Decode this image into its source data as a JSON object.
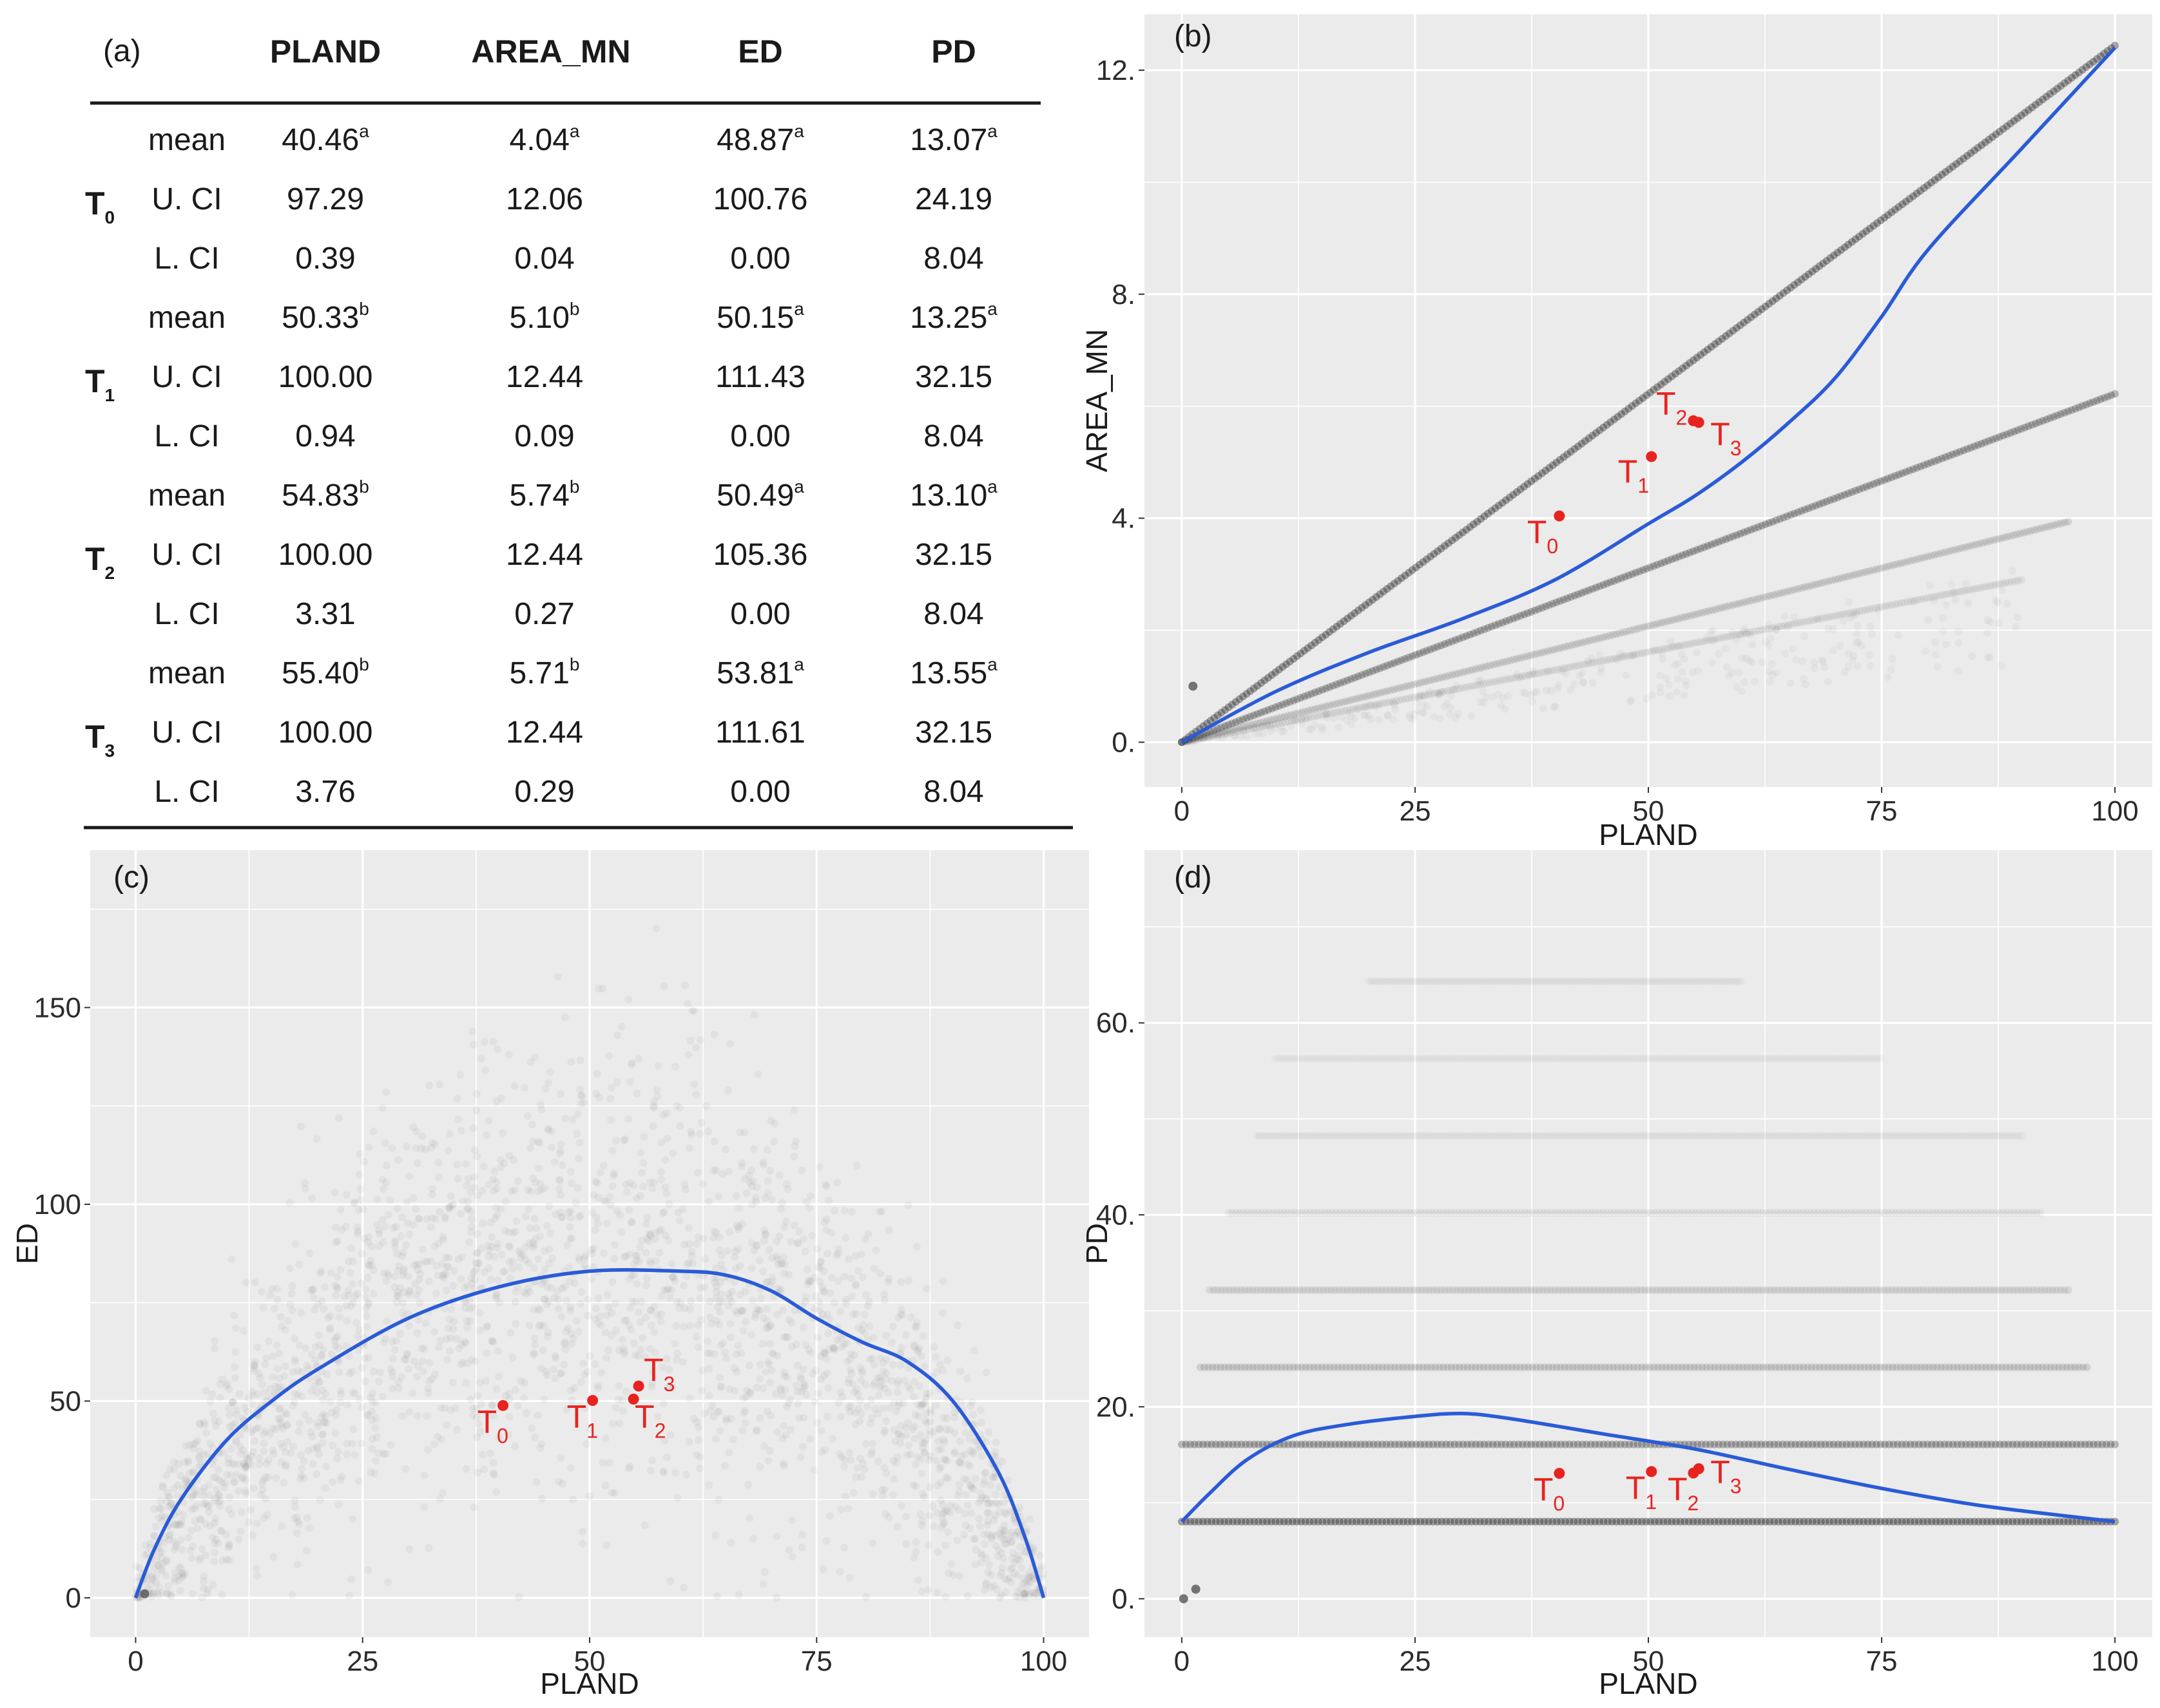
{
  "table": {
    "panel_label": "(a)",
    "columns": [
      "PLAND",
      "AREA_MN",
      "ED",
      "PD"
    ],
    "groups": [
      {
        "name": "T",
        "subscript": "0",
        "rows": [
          {
            "stat": "mean",
            "values": [
              {
                "v": "40.46",
                "sup": "a"
              },
              {
                "v": "4.04",
                "sup": "a"
              },
              {
                "v": "48.87",
                "sup": "a"
              },
              {
                "v": "13.07",
                "sup": "a"
              }
            ]
          },
          {
            "stat": "U. CI",
            "values": [
              {
                "v": "97.29",
                "sup": ""
              },
              {
                "v": "12.06",
                "sup": ""
              },
              {
                "v": "100.76",
                "sup": ""
              },
              {
                "v": "24.19",
                "sup": ""
              }
            ]
          },
          {
            "stat": "L. CI",
            "values": [
              {
                "v": "0.39",
                "sup": ""
              },
              {
                "v": "0.04",
                "sup": ""
              },
              {
                "v": "0.00",
                "sup": ""
              },
              {
                "v": "8.04",
                "sup": ""
              }
            ]
          }
        ]
      },
      {
        "name": "T",
        "subscript": "1",
        "rows": [
          {
            "stat": "mean",
            "values": [
              {
                "v": "50.33",
                "sup": "b"
              },
              {
                "v": "5.10",
                "sup": "b"
              },
              {
                "v": "50.15",
                "sup": "a"
              },
              {
                "v": "13.25",
                "sup": "a"
              }
            ]
          },
          {
            "stat": "U. CI",
            "values": [
              {
                "v": "100.00",
                "sup": ""
              },
              {
                "v": "12.44",
                "sup": ""
              },
              {
                "v": "111.43",
                "sup": ""
              },
              {
                "v": "32.15",
                "sup": ""
              }
            ]
          },
          {
            "stat": "L. CI",
            "values": [
              {
                "v": "0.94",
                "sup": ""
              },
              {
                "v": "0.09",
                "sup": ""
              },
              {
                "v": "0.00",
                "sup": ""
              },
              {
                "v": "8.04",
                "sup": ""
              }
            ]
          }
        ]
      },
      {
        "name": "T",
        "subscript": "2",
        "rows": [
          {
            "stat": "mean",
            "values": [
              {
                "v": "54.83",
                "sup": "b"
              },
              {
                "v": "5.74",
                "sup": "b"
              },
              {
                "v": "50.49",
                "sup": "a"
              },
              {
                "v": "13.10",
                "sup": "a"
              }
            ]
          },
          {
            "stat": "U. CI",
            "values": [
              {
                "v": "100.00",
                "sup": ""
              },
              {
                "v": "12.44",
                "sup": ""
              },
              {
                "v": "105.36",
                "sup": ""
              },
              {
                "v": "32.15",
                "sup": ""
              }
            ]
          },
          {
            "stat": "L. CI",
            "values": [
              {
                "v": "3.31",
                "sup": ""
              },
              {
                "v": "0.27",
                "sup": ""
              },
              {
                "v": "0.00",
                "sup": ""
              },
              {
                "v": "8.04",
                "sup": ""
              }
            ]
          }
        ]
      },
      {
        "name": "T",
        "subscript": "3",
        "rows": [
          {
            "stat": "mean",
            "values": [
              {
                "v": "55.40",
                "sup": "b"
              },
              {
                "v": "5.71",
                "sup": "b"
              },
              {
                "v": "53.81",
                "sup": "a"
              },
              {
                "v": "13.55",
                "sup": "a"
              }
            ]
          },
          {
            "stat": "U. CI",
            "values": [
              {
                "v": "100.00",
                "sup": ""
              },
              {
                "v": "12.44",
                "sup": ""
              },
              {
                "v": "111.61",
                "sup": ""
              },
              {
                "v": "32.15",
                "sup": ""
              }
            ]
          },
          {
            "stat": "L. CI",
            "values": [
              {
                "v": "3.76",
                "sup": ""
              },
              {
                "v": "0.29",
                "sup": ""
              },
              {
                "v": "0.00",
                "sup": ""
              },
              {
                "v": "8.04",
                "sup": ""
              }
            ]
          }
        ]
      }
    ]
  },
  "colors": {
    "panel_bg": "#ebebeb",
    "grid": "#ffffff",
    "smooth_line": "#2a5bd7",
    "treatment_point": "#e8231f",
    "scatter_point": "#333333"
  },
  "chart_data": [
    {
      "id": "b",
      "panel_label": "(b)",
      "type": "scatter",
      "xlabel": "PLAND",
      "ylabel": "AREA_MN",
      "xlim": [
        -4,
        104
      ],
      "ylim": [
        -0.8,
        13.0
      ],
      "xticks": [
        0,
        25,
        50,
        75,
        100
      ],
      "yticks": [
        0,
        4,
        8,
        12
      ],
      "scatter_bands": [
        {
          "description": "dense band",
          "x": [
            0,
            100
          ],
          "y": [
            0,
            12.44
          ],
          "opacity": 0.75
        },
        {
          "description": "band",
          "x": [
            0,
            100
          ],
          "y": [
            0,
            6.22
          ],
          "opacity": 0.55
        },
        {
          "description": "faint band",
          "x": [
            0,
            95
          ],
          "y": [
            0,
            3.94
          ],
          "opacity": 0.22
        },
        {
          "description": "faint band",
          "x": [
            0,
            90
          ],
          "y": [
            0,
            2.9
          ],
          "opacity": 0.12
        }
      ],
      "extra_points": [
        {
          "x": 1.2,
          "y": 1.0
        }
      ],
      "smooth": {
        "x": [
          0,
          10,
          20,
          30,
          40,
          50,
          55,
          60,
          65,
          70,
          75,
          80,
          90,
          100
        ],
        "y": [
          0,
          0.9,
          1.6,
          2.2,
          2.9,
          3.9,
          4.4,
          5.0,
          5.7,
          6.5,
          7.6,
          8.8,
          10.6,
          12.4
        ]
      },
      "treatments": [
        {
          "name": "T",
          "sub": "0",
          "x": 40.46,
          "y": 4.04
        },
        {
          "name": "T",
          "sub": "1",
          "x": 50.33,
          "y": 5.1
        },
        {
          "name": "T",
          "sub": "2",
          "x": 54.83,
          "y": 5.74
        },
        {
          "name": "T",
          "sub": "3",
          "x": 55.4,
          "y": 5.71
        }
      ]
    },
    {
      "id": "c",
      "panel_label": "(c)",
      "type": "scatter",
      "xlabel": "PLAND",
      "ylabel": "ED",
      "xlim": [
        -5,
        105
      ],
      "ylim": [
        -10,
        190
      ],
      "xticks": [
        0,
        25,
        50,
        75,
        100
      ],
      "yticks": [
        0,
        50,
        100,
        150
      ],
      "cloud": {
        "description": "dense grey point cloud, hump shaped",
        "peak_x": 55,
        "peak_y_max": 175
      },
      "extra_points": [
        {
          "x": 1.0,
          "y": 1.0
        }
      ],
      "smooth": {
        "x": [
          0,
          2,
          5,
          10,
          15,
          20,
          30,
          40,
          50,
          60,
          65,
          70,
          75,
          80,
          85,
          90,
          95,
          98,
          100
        ],
        "y": [
          0,
          12,
          25,
          40,
          50,
          58,
          71,
          79,
          83,
          83,
          82,
          78,
          71,
          65,
          60,
          50,
          32,
          15,
          0
        ]
      },
      "treatments": [
        {
          "name": "T",
          "sub": "0",
          "x": 40.46,
          "y": 48.87
        },
        {
          "name": "T",
          "sub": "1",
          "x": 50.33,
          "y": 50.15
        },
        {
          "name": "T",
          "sub": "2",
          "x": 54.83,
          "y": 50.49
        },
        {
          "name": "T",
          "sub": "3",
          "x": 55.4,
          "y": 53.81
        }
      ]
    },
    {
      "id": "d",
      "panel_label": "(d)",
      "type": "scatter",
      "xlabel": "PLAND",
      "ylabel": "PD",
      "xlim": [
        -4,
        104
      ],
      "ylim": [
        -4,
        78
      ],
      "xticks": [
        0,
        25,
        50,
        75,
        100
      ],
      "yticks": [
        0,
        20,
        40,
        60
      ],
      "scatter_rows": [
        {
          "y": 8.04,
          "x": [
            0,
            100
          ],
          "opacity": 0.85
        },
        {
          "y": 16.08,
          "x": [
            0,
            100
          ],
          "opacity": 0.6
        },
        {
          "y": 24.12,
          "x": [
            2,
            97
          ],
          "opacity": 0.3
        },
        {
          "y": 32.16,
          "x": [
            3,
            95
          ],
          "opacity": 0.2
        },
        {
          "y": 40.2,
          "x": [
            5,
            92
          ],
          "opacity": 0.12
        },
        {
          "y": 48.24,
          "x": [
            8,
            90
          ],
          "opacity": 0.08
        },
        {
          "y": 56.28,
          "x": [
            10,
            75
          ],
          "opacity": 0.05
        },
        {
          "y": 64.32,
          "x": [
            20,
            60
          ],
          "opacity": 0.04
        }
      ],
      "extra_points": [
        {
          "x": 0.2,
          "y": 0.0
        },
        {
          "x": 1.5,
          "y": 1.0
        }
      ],
      "smooth": {
        "x": [
          0,
          3,
          7,
          12,
          18,
          25,
          30,
          35,
          45,
          55,
          65,
          75,
          85,
          95,
          100
        ],
        "y": [
          8.04,
          11,
          14.5,
          17,
          18.2,
          19,
          19.3,
          18.8,
          17.2,
          15.6,
          13.5,
          11.5,
          9.8,
          8.6,
          8.04
        ]
      },
      "treatments": [
        {
          "name": "T",
          "sub": "0",
          "x": 40.46,
          "y": 13.07
        },
        {
          "name": "T",
          "sub": "1",
          "x": 50.33,
          "y": 13.25
        },
        {
          "name": "T",
          "sub": "2",
          "x": 54.83,
          "y": 13.1
        },
        {
          "name": "T",
          "sub": "3",
          "x": 55.4,
          "y": 13.55
        }
      ]
    }
  ]
}
